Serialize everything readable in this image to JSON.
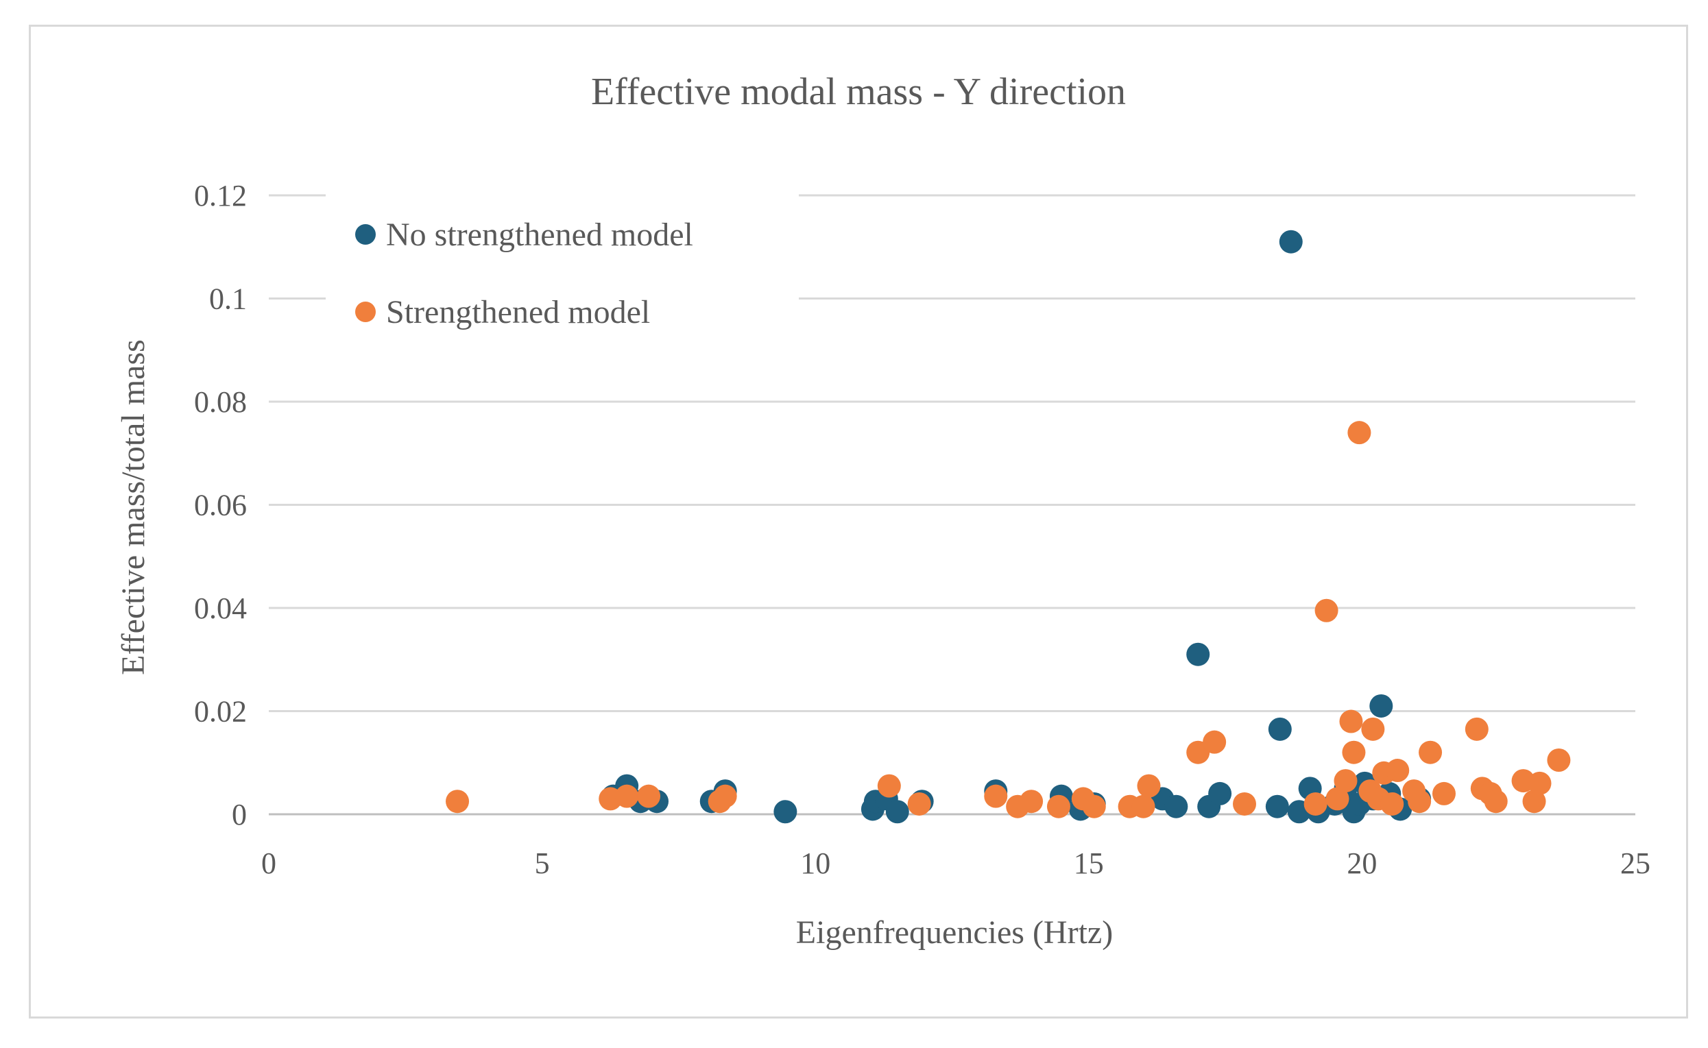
{
  "chart_data": {
    "type": "scatter",
    "title": "Effective modal mass - Y direction",
    "xlabel": "Eigenfrequencies (Hrtz)",
    "ylabel": "Effective mass/total mass",
    "xlim": [
      0,
      25
    ],
    "ylim": [
      0,
      0.12
    ],
    "x_ticks": [
      "0",
      "5",
      "10",
      "15",
      "20",
      "25"
    ],
    "y_ticks": [
      "0",
      "0.02",
      "0.04",
      "0.06",
      "0.08",
      "0.1",
      "0.12"
    ],
    "grid": "horizontal",
    "legend_position": "top-left",
    "series": [
      {
        "name": "No strengthened model",
        "color": "#1f5f7f",
        "points": [
          [
            6.3,
            0.0035
          ],
          [
            6.55,
            0.0055
          ],
          [
            6.8,
            0.0025
          ],
          [
            7.1,
            0.0025
          ],
          [
            8.1,
            0.0025
          ],
          [
            8.35,
            0.0045
          ],
          [
            9.45,
            0.0005
          ],
          [
            11.05,
            0.001
          ],
          [
            11.1,
            0.0025
          ],
          [
            11.3,
            0.003
          ],
          [
            11.5,
            0.0005
          ],
          [
            11.95,
            0.0025
          ],
          [
            13.3,
            0.0045
          ],
          [
            14.5,
            0.0035
          ],
          [
            14.85,
            0.001
          ],
          [
            15.1,
            0.002
          ],
          [
            16.35,
            0.003
          ],
          [
            16.6,
            0.0015
          ],
          [
            17.0,
            0.031
          ],
          [
            17.2,
            0.0015
          ],
          [
            17.4,
            0.004
          ],
          [
            18.45,
            0.0015
          ],
          [
            18.5,
            0.0165
          ],
          [
            18.7,
            0.111
          ],
          [
            18.85,
            0.0005
          ],
          [
            19.05,
            0.005
          ],
          [
            19.2,
            0.0005
          ],
          [
            19.5,
            0.002
          ],
          [
            19.7,
            0.005
          ],
          [
            19.85,
            0.0005
          ],
          [
            19.95,
            0.002
          ],
          [
            20.05,
            0.006
          ],
          [
            20.2,
            0.003
          ],
          [
            20.35,
            0.021
          ],
          [
            20.5,
            0.004
          ],
          [
            20.7,
            0.001
          ],
          [
            21.05,
            0.003
          ]
        ]
      },
      {
        "name": "Strengthened model",
        "color": "#f07f3c",
        "points": [
          [
            3.45,
            0.0025
          ],
          [
            6.25,
            0.003
          ],
          [
            6.55,
            0.0035
          ],
          [
            6.95,
            0.0035
          ],
          [
            8.25,
            0.0025
          ],
          [
            8.35,
            0.0035
          ],
          [
            11.35,
            0.0055
          ],
          [
            11.9,
            0.002
          ],
          [
            13.3,
            0.0035
          ],
          [
            13.7,
            0.0015
          ],
          [
            13.95,
            0.0025
          ],
          [
            14.45,
            0.0015
          ],
          [
            14.9,
            0.003
          ],
          [
            15.1,
            0.0015
          ],
          [
            15.75,
            0.0015
          ],
          [
            16.0,
            0.0015
          ],
          [
            16.1,
            0.0055
          ],
          [
            17.0,
            0.012
          ],
          [
            17.3,
            0.014
          ],
          [
            17.85,
            0.002
          ],
          [
            19.15,
            0.002
          ],
          [
            19.35,
            0.0395
          ],
          [
            19.55,
            0.003
          ],
          [
            19.7,
            0.0065
          ],
          [
            19.8,
            0.018
          ],
          [
            19.85,
            0.012
          ],
          [
            19.95,
            0.074
          ],
          [
            20.2,
            0.0165
          ],
          [
            20.15,
            0.0045
          ],
          [
            20.3,
            0.003
          ],
          [
            20.4,
            0.008
          ],
          [
            20.55,
            0.002
          ],
          [
            20.65,
            0.0085
          ],
          [
            20.95,
            0.0045
          ],
          [
            21.05,
            0.0025
          ],
          [
            21.25,
            0.012
          ],
          [
            21.5,
            0.004
          ],
          [
            22.1,
            0.0165
          ],
          [
            22.2,
            0.005
          ],
          [
            22.35,
            0.004
          ],
          [
            22.45,
            0.0025
          ],
          [
            22.95,
            0.0065
          ],
          [
            23.15,
            0.0025
          ],
          [
            23.25,
            0.006
          ],
          [
            23.6,
            0.0105
          ]
        ]
      }
    ]
  },
  "colors": {
    "grid": "#d9d9d9",
    "axis": "#bfbfbf"
  }
}
